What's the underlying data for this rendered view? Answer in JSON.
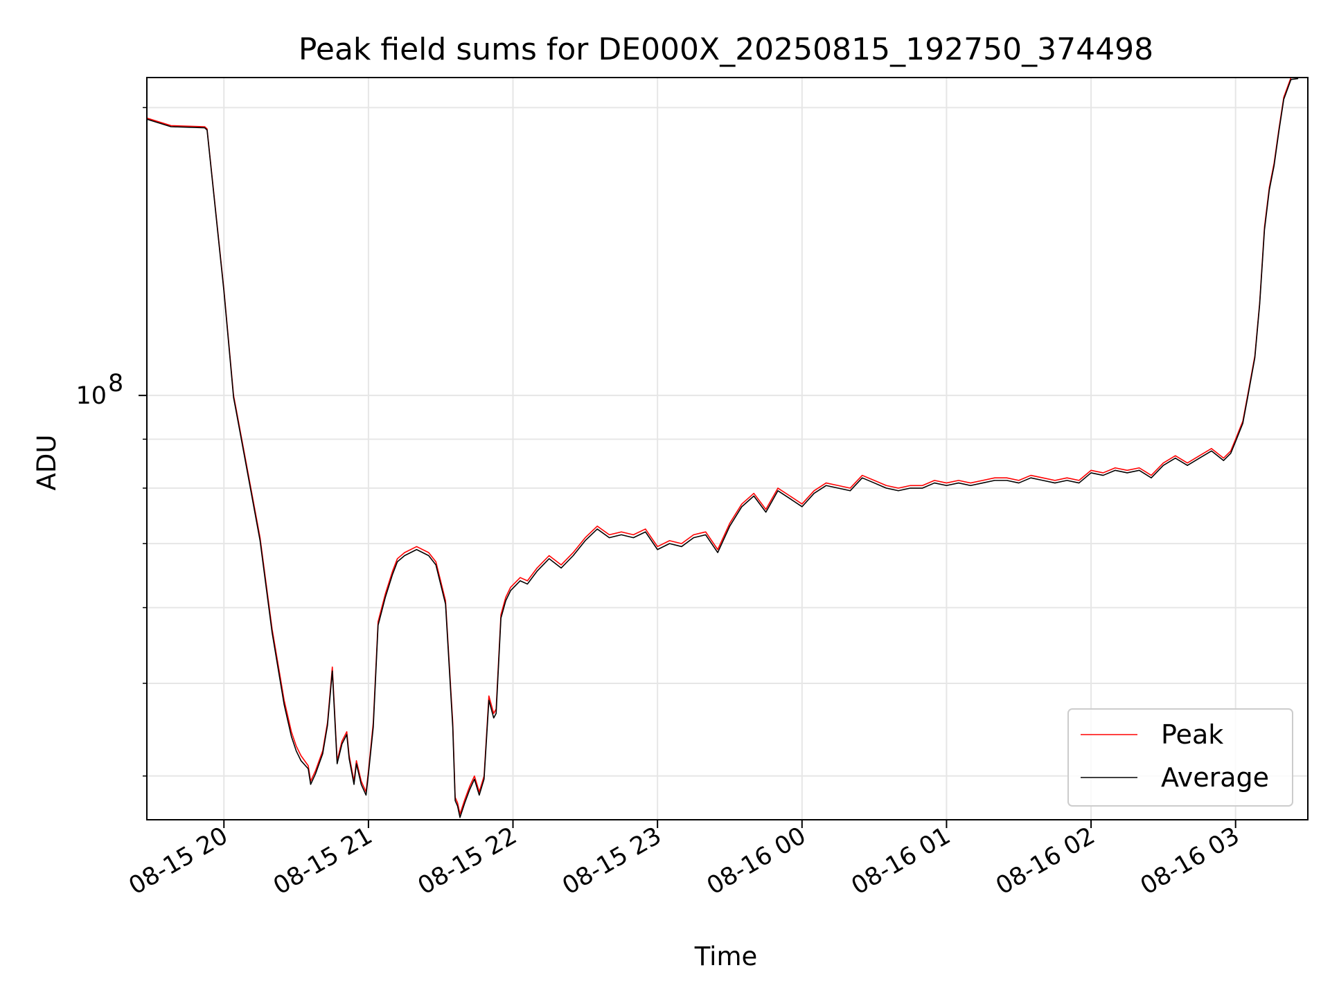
{
  "chart_data": {
    "type": "line",
    "title": "Peak field sums for DE000X_20250815_192750_374498",
    "xlabel": "Time",
    "ylabel": "ADU",
    "x_axis": "datetime",
    "xlim": [
      "08-15 19:28",
      "08-16 03:30"
    ],
    "x_ticks": [
      "08-15 20",
      "08-15 21",
      "08-15 22",
      "08-15 23",
      "08-16 00",
      "08-16 01",
      "08-16 02",
      "08-16 03"
    ],
    "y_scale": "log",
    "ylim": [
      36000000,
      215000000
    ],
    "y_ticks": [
      {
        "value": 100000000,
        "base": "10",
        "exponent": "8"
      }
    ],
    "grid": true,
    "legend_position": "lower-right",
    "x": [
      "08-15 19:28",
      "08-15 19:38",
      "08-15 19:52",
      "08-15 19:53",
      "08-15 20:00",
      "08-15 20:04",
      "08-15 20:05",
      "08-15 20:10",
      "08-15 20:15",
      "08-15 20:20",
      "08-15 20:25",
      "08-15 20:28",
      "08-15 20:30",
      "08-15 20:32",
      "08-15 20:35",
      "08-15 20:36",
      "08-15 20:38",
      "08-15 20:41",
      "08-15 20:43",
      "08-15 20:45",
      "08-15 20:47",
      "08-15 20:49",
      "08-15 20:51",
      "08-15 20:52",
      "08-15 20:54",
      "08-15 20:55",
      "08-15 20:57",
      "08-15 20:59",
      "08-15 21:00",
      "08-15 21:02",
      "08-15 21:04",
      "08-15 21:07",
      "08-15 21:10",
      "08-15 21:12",
      "08-15 21:15",
      "08-15 21:20",
      "08-15 21:25",
      "08-15 21:28",
      "08-15 21:32",
      "08-15 21:35",
      "08-15 21:36",
      "08-15 21:37",
      "08-15 21:38",
      "08-15 21:40",
      "08-15 21:42",
      "08-15 21:44",
      "08-15 21:46",
      "08-15 21:48",
      "08-15 21:50",
      "08-15 21:52",
      "08-15 21:53",
      "08-15 21:55",
      "08-15 21:57",
      "08-15 21:59",
      "08-15 22:03",
      "08-15 22:06",
      "08-15 22:10",
      "08-15 22:15",
      "08-15 22:20",
      "08-15 22:25",
      "08-15 22:30",
      "08-15 22:35",
      "08-15 22:40",
      "08-15 22:45",
      "08-15 22:50",
      "08-15 22:55",
      "08-15 23:00",
      "08-15 23:05",
      "08-15 23:10",
      "08-15 23:15",
      "08-15 23:20",
      "08-15 23:25",
      "08-15 23:30",
      "08-15 23:35",
      "08-15 23:40",
      "08-15 23:45",
      "08-15 23:50",
      "08-15 23:55",
      "08-16 00:00",
      "08-16 00:05",
      "08-16 00:10",
      "08-16 00:15",
      "08-16 00:20",
      "08-16 00:25",
      "08-16 00:30",
      "08-16 00:35",
      "08-16 00:40",
      "08-16 00:45",
      "08-16 00:50",
      "08-16 00:55",
      "08-16 01:00",
      "08-16 01:05",
      "08-16 01:10",
      "08-16 01:15",
      "08-16 01:20",
      "08-16 01:25",
      "08-16 01:30",
      "08-16 01:35",
      "08-16 01:40",
      "08-16 01:45",
      "08-16 01:50",
      "08-16 01:55",
      "08-16 02:00",
      "08-16 02:05",
      "08-16 02:10",
      "08-16 02:15",
      "08-16 02:20",
      "08-16 02:25",
      "08-16 02:30",
      "08-16 02:35",
      "08-16 02:40",
      "08-16 02:45",
      "08-16 02:50",
      "08-16 02:55",
      "08-16 02:58",
      "08-16 03:00",
      "08-16 03:03",
      "08-16 03:05",
      "08-16 03:08",
      "08-16 03:10",
      "08-16 03:12",
      "08-16 03:14",
      "08-16 03:16",
      "08-16 03:18",
      "08-16 03:20",
      "08-16 03:23",
      "08-16 03:26"
    ],
    "series": [
      {
        "name": "Peak",
        "color": "#ff0000",
        "values": [
          195000000,
          191500000,
          191000000,
          190000000,
          129000000,
          100000000,
          97000000,
          83000000,
          71000000,
          57000000,
          48000000,
          44500000,
          43000000,
          42000000,
          41000000,
          39500000,
          40500000,
          42500000,
          45500000,
          52000000,
          41500000,
          43500000,
          44500000,
          42000000,
          39500000,
          41500000,
          39500000,
          38500000,
          40500000,
          45500000,
          58000000,
          62000000,
          65500000,
          67500000,
          68500000,
          69500000,
          68500000,
          67000000,
          61000000,
          45500000,
          38000000,
          37500000,
          36500000,
          37800000,
          39000000,
          40000000,
          38500000,
          40000000,
          48500000,
          46500000,
          47000000,
          59000000,
          61500000,
          63000000,
          64500000,
          64000000,
          66000000,
          68000000,
          66500000,
          68500000,
          71000000,
          73000000,
          71500000,
          72000000,
          71500000,
          72500000,
          69500000,
          70500000,
          70000000,
          71500000,
          72000000,
          69000000,
          73500000,
          77000000,
          79000000,
          76000000,
          80000000,
          78500000,
          77000000,
          79500000,
          81000000,
          80500000,
          80000000,
          82500000,
          81500000,
          80500000,
          80000000,
          80500000,
          80500000,
          81500000,
          81000000,
          81500000,
          81000000,
          81500000,
          82000000,
          82000000,
          81500000,
          82500000,
          82000000,
          81500000,
          82000000,
          81500000,
          83500000,
          83000000,
          84000000,
          83500000,
          84000000,
          82500000,
          85000000,
          86500000,
          85000000,
          86500000,
          88000000,
          86000000,
          87500000,
          90000000,
          94000000,
          100000000,
          110000000,
          125000000,
          150000000,
          165000000,
          175000000,
          190000000,
          205000000,
          215000000,
          215000000
        ]
      },
      {
        "name": "Average",
        "color": "#000000",
        "values": [
          194500000,
          191000000,
          190500000,
          189500000,
          128500000,
          99500000,
          96500000,
          82500000,
          70500000,
          56500000,
          47500000,
          44000000,
          42500000,
          41500000,
          40700000,
          39200000,
          40200000,
          42200000,
          45200000,
          51500000,
          41200000,
          43200000,
          44200000,
          41700000,
          39200000,
          41200000,
          39200000,
          38200000,
          40200000,
          45000000,
          57500000,
          61500000,
          65000000,
          67000000,
          68000000,
          69000000,
          68000000,
          66500000,
          60500000,
          45000000,
          37700000,
          37200000,
          36200000,
          37500000,
          38700000,
          39700000,
          38200000,
          39700000,
          48000000,
          46000000,
          46500000,
          58500000,
          61000000,
          62500000,
          64000000,
          63500000,
          65500000,
          67500000,
          66000000,
          68000000,
          70500000,
          72500000,
          71000000,
          71500000,
          71000000,
          72000000,
          69000000,
          70000000,
          69500000,
          71000000,
          71500000,
          68500000,
          73000000,
          76500000,
          78500000,
          75500000,
          79500000,
          78000000,
          76500000,
          79000000,
          80500000,
          80000000,
          79500000,
          82000000,
          81000000,
          80000000,
          79500000,
          80000000,
          80000000,
          81000000,
          80500000,
          81000000,
          80500000,
          81000000,
          81500000,
          81500000,
          81000000,
          82000000,
          81500000,
          81000000,
          81500000,
          81000000,
          83000000,
          82500000,
          83500000,
          83000000,
          83500000,
          82000000,
          84500000,
          86000000,
          84500000,
          86000000,
          87500000,
          85500000,
          87000000,
          89500000,
          93500000,
          99500000,
          109500000,
          124500000,
          149000000,
          164000000,
          174000000,
          189000000,
          204000000,
          214000000,
          214500000
        ]
      }
    ]
  }
}
